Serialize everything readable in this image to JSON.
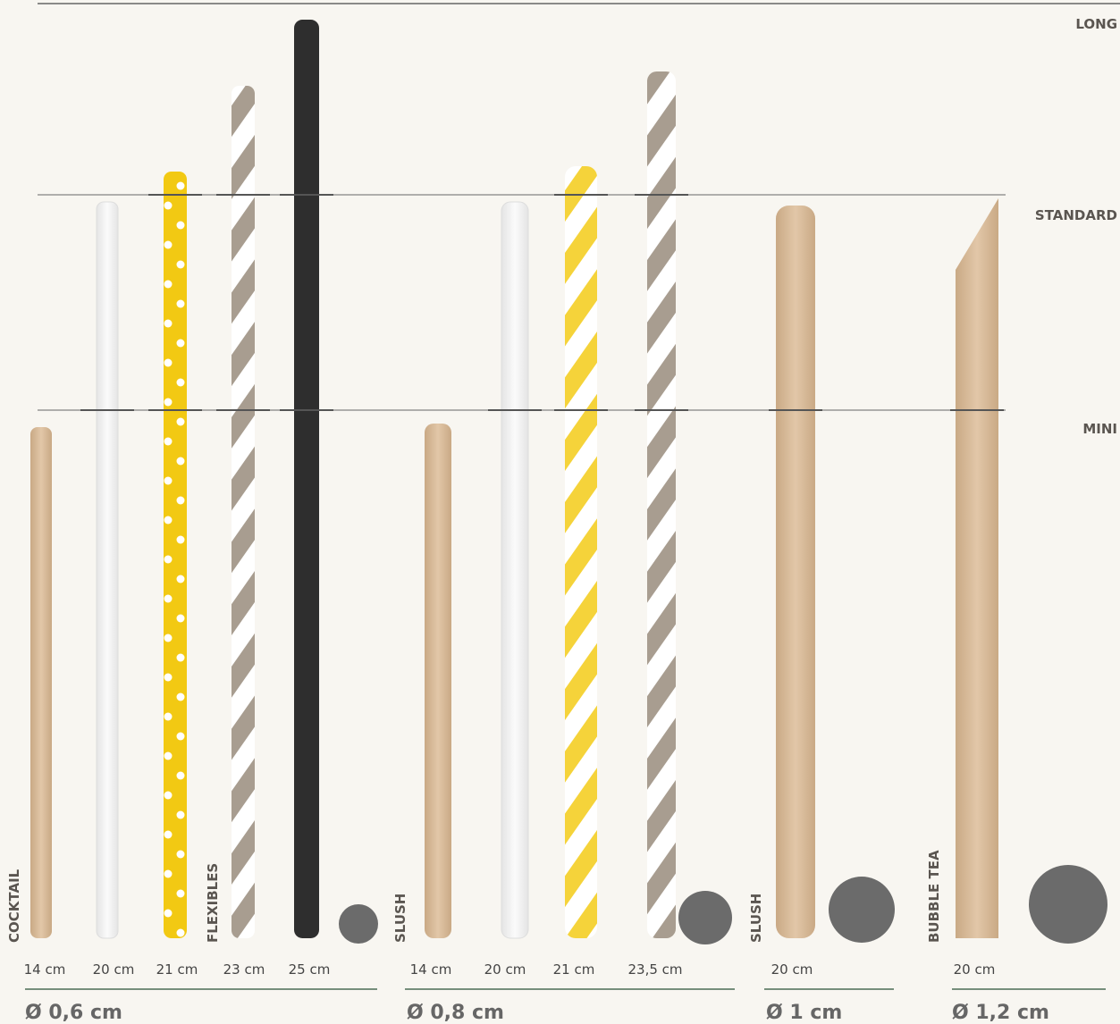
{
  "levels": [
    "LONG",
    "STANDARD",
    "MINI"
  ],
  "groups": [
    {
      "diameter": "Ø 0,6 cm",
      "labels": [
        "COCKTAIL",
        "FLEXIBLES"
      ],
      "straws": [
        "14 cm",
        "20 cm",
        "21 cm",
        "23 cm",
        "25 cm"
      ]
    },
    {
      "diameter": "Ø 0,8 cm",
      "labels": [
        "SLUSH"
      ],
      "straws": [
        "14 cm",
        "20 cm",
        "21 cm",
        "23,5 cm"
      ]
    },
    {
      "diameter": "Ø 1 cm",
      "labels": [
        "SLUSH"
      ],
      "straws": [
        "20 cm"
      ]
    },
    {
      "diameter": "Ø 1,2 cm",
      "labels": [
        "BUBBLE TEA"
      ],
      "straws": [
        "20 cm"
      ]
    }
  ]
}
